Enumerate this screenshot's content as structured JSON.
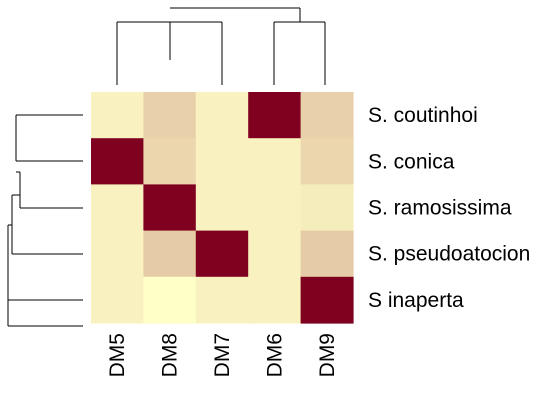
{
  "chart_data": {
    "type": "heatmap",
    "title": "",
    "rows": [
      "S. coutinhoi",
      "S. conica",
      "S. ramosissima",
      "S. pseudoatocion",
      "S inaperta"
    ],
    "columns": [
      "DM5",
      "DM8",
      "DM7",
      "DM6",
      "DM9"
    ],
    "values": [
      [
        0.05,
        0.18,
        0.05,
        1.0,
        0.18
      ],
      [
        1.0,
        0.16,
        0.05,
        0.05,
        0.16
      ],
      [
        0.05,
        1.0,
        0.05,
        0.05,
        0.07
      ],
      [
        0.05,
        0.2,
        1.0,
        0.05,
        0.2
      ],
      [
        0.05,
        0.0,
        0.05,
        0.05,
        1.0
      ]
    ],
    "color_scale": {
      "low": "#ffffc8",
      "high": "#800020"
    },
    "legend": "none",
    "dendrogram": {
      "rows": true,
      "columns": true
    }
  }
}
